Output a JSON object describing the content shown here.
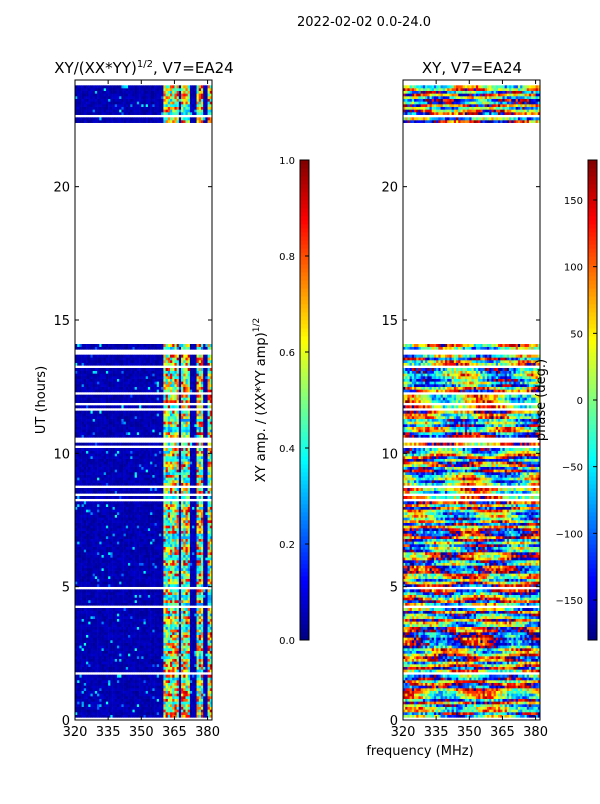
{
  "chart_data": [
    {
      "type": "heatmap",
      "suptitle": "2022-02-02 0.0-24.0",
      "title": "XY/(XX*YY)",
      "title_exponent": "1/2",
      "title_suffix": ", V7=EA24",
      "ylabel": "UT (hours)",
      "xlim": [
        320,
        382
      ],
      "ylim": [
        0,
        24
      ],
      "xticks": [
        "320",
        "335",
        "350",
        "365",
        "380"
      ],
      "yticks": [
        "0",
        "5",
        "10",
        "15",
        "20"
      ],
      "ytick_values": [
        0,
        5,
        10,
        15,
        20
      ],
      "xtick_values": [
        320,
        335,
        350,
        365,
        380
      ],
      "data_ranges_hours": [
        [
          0,
          14.1
        ],
        [
          22.4,
          23.8
        ]
      ],
      "bright_channels_mhz": [
        [
          360,
          367
        ],
        [
          368,
          372
        ],
        [
          375,
          378
        ],
        [
          380,
          382
        ]
      ],
      "colorbar": {
        "label": "XY amp. / (XX*YY amp)",
        "label_exponent": "1/2",
        "vmin": 0.0,
        "vmax": 1.0,
        "ticks": [
          "0.0",
          "0.2",
          "0.4",
          "0.6",
          "0.8",
          "1.0"
        ],
        "tick_values": [
          0.0,
          0.2,
          0.4,
          0.6,
          0.8,
          1.0
        ]
      }
    },
    {
      "type": "heatmap",
      "title": "XY, V7=EA24",
      "xlabel": "frequency (MHz)",
      "xlim": [
        320,
        382
      ],
      "ylim": [
        0,
        24
      ],
      "xticks": [
        "320",
        "335",
        "350",
        "365",
        "380"
      ],
      "yticks": [
        "0",
        "5",
        "10",
        "15",
        "20"
      ],
      "ytick_values": [
        0,
        5,
        10,
        15,
        20
      ],
      "xtick_values": [
        320,
        335,
        350,
        365,
        380
      ],
      "data_ranges_hours": [
        [
          0,
          14.1
        ],
        [
          22.4,
          23.8
        ]
      ],
      "colorbar": {
        "label": "phase (deg.)",
        "vmin": -180,
        "vmax": 180,
        "ticks": [
          "−150",
          "−100",
          "−50",
          "0",
          "50",
          "100",
          "150"
        ],
        "tick_values": [
          -150,
          -100,
          -50,
          0,
          50,
          100,
          150
        ]
      }
    }
  ]
}
